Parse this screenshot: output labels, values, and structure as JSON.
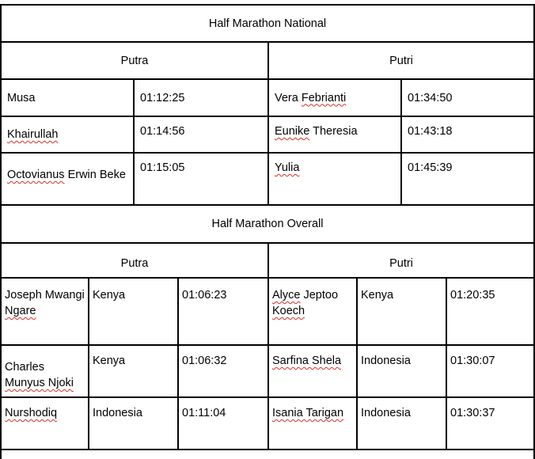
{
  "national": {
    "title": "Half Marathon National",
    "putra_label": "Putra",
    "putri_label": "Putri",
    "putra": [
      {
        "name": "Musa",
        "time": "01:12:25"
      },
      {
        "name": "Khairullah",
        "time": "01:14:56"
      },
      {
        "name_a": "Octovianus",
        "name_b": " Erwin Beke",
        "time": "01:15:05"
      }
    ],
    "putri": [
      {
        "first": "Vera ",
        "last": "Febrianti",
        "time": "01:34:50"
      },
      {
        "first": "Eunike",
        "last": " Theresia",
        "time": "01:43:18"
      },
      {
        "name": "Yulia",
        "time": "01:45:39"
      }
    ]
  },
  "overall": {
    "title": "Half Marathon Overall",
    "putra_label": "Putra",
    "putri_label": "Putri",
    "putra": [
      {
        "name_a": "Joseph Mwangi ",
        "name_b": "Ngare",
        "country": "Kenya",
        "time": "01:06:23"
      },
      {
        "name_a": "Charles ",
        "name_b": "Munyus Njoki",
        "country": "Kenya",
        "time": "01:06:32"
      },
      {
        "name": "Nurshodiq",
        "country": "Indonesia",
        "time": "01:11:04"
      }
    ],
    "putri": [
      {
        "name_a": "Alyce",
        "name_b": " Jeptoo ",
        "name_c": "Koech",
        "country": "Kenya",
        "time": "01:20:35"
      },
      {
        "name": "Sarfina Shela",
        "country": "Indonesia",
        "time": "01:30:07"
      },
      {
        "name": "Isania Tarigan",
        "country": "Indonesia",
        "time": "01:30:37"
      }
    ]
  }
}
